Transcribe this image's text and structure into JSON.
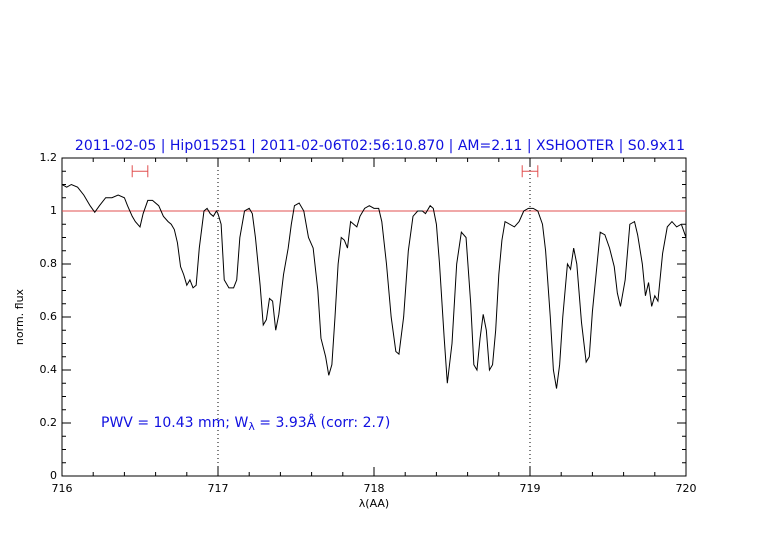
{
  "chart_data": {
    "type": "line",
    "title": "2011-02-05 | Hip015251 | 2011-02-06T02:56:10.870 | AM=2.11 | XSHOOTER | S0.9x11",
    "xlabel": "λ(AA)",
    "ylabel": "norm. flux",
    "annotation": {
      "parts": [
        "PWV = 10.43 mm; W",
        "λ",
        " = 3.93Å (corr: 2.7)"
      ],
      "x": 716.25,
      "y": 0.2,
      "color": "#1010e0"
    },
    "xlim": [
      716,
      720
    ],
    "ylim": [
      0,
      1.2
    ],
    "xticks": [
      716,
      717,
      718,
      719,
      720
    ],
    "yticks": [
      0,
      0.2,
      0.4,
      0.6,
      0.8,
      1,
      1.2
    ],
    "hline": {
      "y": 1,
      "color": "#e05050"
    },
    "vlines": [
      717,
      719
    ],
    "ranges": [
      {
        "x": [
          716.45,
          716.55
        ],
        "y": 1.15
      },
      {
        "x": [
          718.95,
          719.05
        ],
        "y": 1.15
      }
    ],
    "range_color": "#e05050",
    "series": [
      {
        "color": "#000000",
        "x": [
          716.0,
          716.03,
          716.06,
          716.1,
          716.14,
          716.18,
          716.21,
          716.24,
          716.28,
          716.32,
          716.36,
          716.4,
          716.42,
          716.45,
          716.47,
          716.5,
          716.52,
          716.55,
          716.58,
          716.62,
          716.65,
          716.68,
          716.7,
          716.72,
          716.74,
          716.76,
          716.78,
          716.8,
          716.82,
          716.84,
          716.86,
          716.88,
          716.91,
          716.93,
          716.95,
          716.97,
          716.99,
          717.0,
          717.02,
          717.04,
          717.07,
          717.1,
          717.12,
          717.14,
          717.17,
          717.2,
          717.22,
          717.24,
          717.27,
          717.29,
          717.31,
          717.33,
          717.35,
          717.37,
          717.39,
          717.42,
          717.45,
          717.47,
          717.49,
          717.52,
          717.55,
          717.58,
          717.61,
          717.64,
          717.66,
          717.69,
          717.71,
          717.73,
          717.75,
          717.77,
          717.79,
          717.81,
          717.83,
          717.85,
          717.87,
          717.89,
          717.91,
          717.94,
          717.97,
          718.0,
          718.03,
          718.05,
          718.08,
          718.11,
          718.14,
          718.16,
          718.19,
          718.22,
          718.25,
          718.28,
          718.31,
          718.33,
          718.36,
          718.38,
          718.4,
          718.42,
          718.45,
          718.47,
          718.5,
          718.53,
          718.56,
          718.59,
          718.62,
          718.64,
          718.66,
          718.68,
          718.7,
          718.72,
          718.74,
          718.76,
          718.78,
          718.8,
          718.82,
          718.84,
          718.87,
          718.9,
          718.93,
          718.96,
          718.99,
          719.02,
          719.05,
          719.08,
          719.1,
          719.13,
          719.15,
          719.17,
          719.19,
          719.21,
          719.24,
          719.26,
          719.28,
          719.3,
          719.33,
          719.36,
          719.38,
          719.4,
          719.43,
          719.45,
          719.48,
          719.51,
          719.54,
          719.56,
          719.58,
          719.61,
          719.64,
          719.67,
          719.69,
          719.72,
          719.74,
          719.76,
          719.78,
          719.8,
          719.82,
          719.85,
          719.88,
          719.91,
          719.94,
          719.97,
          720.0
        ],
        "values": [
          1.1,
          1.09,
          1.1,
          1.09,
          1.06,
          1.02,
          0.995,
          1.02,
          1.05,
          1.05,
          1.06,
          1.05,
          1.02,
          0.98,
          0.96,
          0.94,
          0.99,
          1.04,
          1.04,
          1.02,
          0.98,
          0.96,
          0.95,
          0.93,
          0.88,
          0.79,
          0.76,
          0.72,
          0.74,
          0.71,
          0.72,
          0.86,
          1.0,
          1.01,
          0.99,
          0.98,
          1.0,
          0.99,
          0.95,
          0.74,
          0.71,
          0.71,
          0.74,
          0.9,
          1.0,
          1.01,
          0.99,
          0.9,
          0.72,
          0.57,
          0.59,
          0.67,
          0.66,
          0.55,
          0.61,
          0.76,
          0.86,
          0.95,
          1.02,
          1.03,
          1.0,
          0.9,
          0.86,
          0.7,
          0.52,
          0.45,
          0.38,
          0.42,
          0.6,
          0.8,
          0.9,
          0.89,
          0.86,
          0.96,
          0.95,
          0.94,
          0.98,
          1.01,
          1.02,
          1.01,
          1.01,
          0.96,
          0.8,
          0.6,
          0.47,
          0.46,
          0.6,
          0.85,
          0.98,
          1.0,
          1.0,
          0.99,
          1.02,
          1.01,
          0.95,
          0.8,
          0.52,
          0.35,
          0.5,
          0.8,
          0.92,
          0.9,
          0.65,
          0.42,
          0.4,
          0.52,
          0.61,
          0.55,
          0.4,
          0.42,
          0.55,
          0.76,
          0.89,
          0.96,
          0.95,
          0.94,
          0.96,
          1.0,
          1.01,
          1.01,
          1.0,
          0.95,
          0.85,
          0.6,
          0.4,
          0.33,
          0.42,
          0.6,
          0.8,
          0.78,
          0.86,
          0.8,
          0.58,
          0.43,
          0.45,
          0.62,
          0.8,
          0.92,
          0.91,
          0.86,
          0.79,
          0.69,
          0.64,
          0.74,
          0.95,
          0.96,
          0.91,
          0.8,
          0.68,
          0.73,
          0.64,
          0.68,
          0.66,
          0.84,
          0.94,
          0.96,
          0.94,
          0.95,
          0.9
        ]
      }
    ]
  }
}
